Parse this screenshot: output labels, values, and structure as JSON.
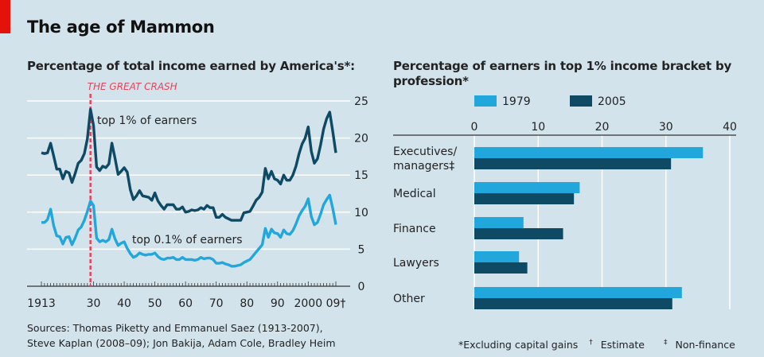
{
  "title": "The age of Mammon",
  "sources_line1": "Sources: Thomas Piketty and Emmanuel Saez (1913-2007),",
  "sources_line2": "Steve Kaplan (2008–09); Jon Bakija, Adam Cole, Bradley Heim",
  "notes": {
    "excluding": "*Excluding capital gains",
    "estimate_mark": "†",
    "estimate": "Estimate",
    "nonfinance_mark": "‡",
    "nonfinance": "Non-finance"
  },
  "colors": {
    "light_blue": "#22a7dd",
    "dark_blue": "#0e4a63",
    "crash_red": "#e3455a",
    "background": "#d3e3ec"
  },
  "chart_data": [
    {
      "type": "line",
      "title": "Percentage of total income earned by America's*:",
      "xlim": [
        1913,
        2009
      ],
      "ylim": [
        0,
        25
      ],
      "yticks": [
        0,
        5,
        10,
        15,
        20,
        25
      ],
      "xtick_values": [
        1913,
        1930,
        1940,
        1950,
        1960,
        1970,
        1980,
        1990,
        2000,
        2009
      ],
      "xtick_labels": [
        "1913",
        "30",
        "40",
        "50",
        "60",
        "70",
        "80",
        "90",
        "2000",
        "09†"
      ],
      "grid": true,
      "y_axis_side": "right",
      "annotation": {
        "label": "THE GREAT CRASH",
        "x": 1929
      },
      "series": [
        {
          "name": "top 1% of earners",
          "color": "#0e4a63",
          "x": [
            1913,
            1914,
            1915,
            1916,
            1917,
            1918,
            1919,
            1920,
            1921,
            1922,
            1923,
            1924,
            1925,
            1926,
            1927,
            1928,
            1929,
            1930,
            1931,
            1932,
            1933,
            1934,
            1935,
            1936,
            1937,
            1938,
            1939,
            1940,
            1941,
            1942,
            1943,
            1944,
            1945,
            1946,
            1947,
            1948,
            1949,
            1950,
            1951,
            1952,
            1953,
            1954,
            1955,
            1956,
            1957,
            1958,
            1959,
            1960,
            1961,
            1962,
            1963,
            1964,
            1965,
            1966,
            1967,
            1968,
            1969,
            1970,
            1971,
            1972,
            1973,
            1974,
            1975,
            1976,
            1977,
            1978,
            1979,
            1980,
            1981,
            1982,
            1983,
            1984,
            1985,
            1986,
            1987,
            1988,
            1989,
            1990,
            1991,
            1992,
            1993,
            1994,
            1995,
            1996,
            1997,
            1998,
            1999,
            2000,
            2001,
            2002,
            2003,
            2004,
            2005,
            2006,
            2007,
            2008,
            2009
          ],
          "y": [
            18.0,
            17.9,
            18.0,
            19.3,
            17.6,
            15.8,
            15.8,
            14.5,
            15.5,
            15.3,
            14.0,
            15.2,
            16.6,
            17.0,
            17.9,
            19.9,
            23.9,
            21.7,
            16.1,
            15.6,
            16.2,
            16.0,
            16.5,
            19.3,
            17.3,
            15.1,
            15.5,
            16.0,
            15.4,
            13.0,
            11.7,
            12.2,
            12.9,
            12.2,
            12.1,
            12.0,
            11.6,
            12.6,
            11.5,
            10.9,
            10.4,
            11.0,
            11.0,
            11.0,
            10.4,
            10.4,
            10.7,
            10.0,
            10.1,
            10.3,
            10.2,
            10.3,
            10.6,
            10.4,
            10.9,
            10.6,
            10.6,
            9.3,
            9.3,
            9.7,
            9.3,
            9.1,
            8.9,
            8.9,
            8.9,
            8.9,
            9.9,
            10.0,
            10.1,
            10.8,
            11.6,
            12.0,
            12.7,
            15.9,
            14.5,
            15.5,
            14.5,
            14.3,
            13.8,
            15.0,
            14.3,
            14.3,
            15.0,
            16.2,
            17.9,
            19.2,
            20.0,
            21.5,
            18.2,
            16.6,
            17.2,
            19.0,
            21.2,
            22.6,
            23.5,
            20.9,
            18.0
          ]
        },
        {
          "name": "top 0.1% of earners",
          "color": "#22a7dd",
          "x": [
            1913,
            1914,
            1915,
            1916,
            1917,
            1918,
            1919,
            1920,
            1921,
            1922,
            1923,
            1924,
            1925,
            1926,
            1927,
            1928,
            1929,
            1930,
            1931,
            1932,
            1933,
            1934,
            1935,
            1936,
            1937,
            1938,
            1939,
            1940,
            1941,
            1942,
            1943,
            1944,
            1945,
            1946,
            1947,
            1948,
            1949,
            1950,
            1951,
            1952,
            1953,
            1954,
            1955,
            1956,
            1957,
            1958,
            1959,
            1960,
            1961,
            1962,
            1963,
            1964,
            1965,
            1966,
            1967,
            1968,
            1969,
            1970,
            1971,
            1972,
            1973,
            1974,
            1975,
            1976,
            1977,
            1978,
            1979,
            1980,
            1981,
            1982,
            1983,
            1984,
            1985,
            1986,
            1987,
            1988,
            1989,
            1990,
            1991,
            1992,
            1993,
            1994,
            1995,
            1996,
            1997,
            1998,
            1999,
            2000,
            2001,
            2002,
            2003,
            2004,
            2005,
            2006,
            2007,
            2008,
            2009
          ],
          "y": [
            8.6,
            8.6,
            9.0,
            10.4,
            8.2,
            6.8,
            6.7,
            5.7,
            6.6,
            6.7,
            5.6,
            6.5,
            7.6,
            8.0,
            8.9,
            10.1,
            11.5,
            10.9,
            6.5,
            6.0,
            6.2,
            6.0,
            6.3,
            7.7,
            6.4,
            5.5,
            5.8,
            6.0,
            5.1,
            4.4,
            3.9,
            4.1,
            4.5,
            4.3,
            4.2,
            4.3,
            4.3,
            4.5,
            4.0,
            3.7,
            3.6,
            3.8,
            3.8,
            3.9,
            3.6,
            3.6,
            3.9,
            3.6,
            3.6,
            3.6,
            3.5,
            3.6,
            3.9,
            3.7,
            3.8,
            3.8,
            3.6,
            3.1,
            3.1,
            3.2,
            3.0,
            2.9,
            2.7,
            2.7,
            2.8,
            2.9,
            3.2,
            3.4,
            3.6,
            4.1,
            4.6,
            5.1,
            5.6,
            7.8,
            6.6,
            7.7,
            7.2,
            7.1,
            6.6,
            7.6,
            7.1,
            7.0,
            7.5,
            8.4,
            9.5,
            10.2,
            10.8,
            11.8,
            9.4,
            8.3,
            8.6,
            9.7,
            11.0,
            11.7,
            12.3,
            10.5,
            8.3
          ]
        }
      ]
    },
    {
      "type": "bar",
      "orientation": "horizontal",
      "title": "Percentage of earners in top 1% income bracket by profession*",
      "xlim": [
        0,
        40
      ],
      "xticks": [
        0,
        10,
        20,
        30,
        40
      ],
      "grid": true,
      "legend_placement": "top",
      "categories": [
        "Executives/ managers‡",
        "Medical",
        "Finance",
        "Lawyers",
        "Other"
      ],
      "series": [
        {
          "name": "1979",
          "color": "#22a7dd",
          "values": [
            35.8,
            16.5,
            7.7,
            7.0,
            32.5
          ]
        },
        {
          "name": "2005",
          "color": "#0e4a63",
          "values": [
            30.8,
            15.6,
            13.9,
            8.3,
            31.0
          ]
        }
      ]
    }
  ]
}
